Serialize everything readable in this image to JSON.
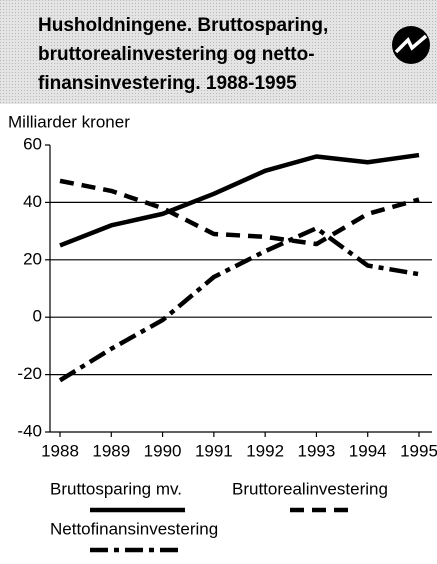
{
  "chart_data": {
    "type": "line",
    "title": [
      "Husholdningene. Bruttosparing,",
      "bruttorealinvestering og netto-",
      "finansinvestering. 1988-1995"
    ],
    "y_label": "Milliarder kroner",
    "categories": [
      "1988",
      "1989",
      "1990",
      "1991",
      "1992",
      "1993",
      "1994",
      "1995"
    ],
    "series": [
      {
        "name": "Bruttosparing mv.",
        "color": "#000000",
        "values": [
          25,
          32,
          36,
          43,
          51,
          56,
          54,
          56.5
        ]
      },
      {
        "name": "Bruttorealinvestering",
        "color": "#000000",
        "values": [
          47.5,
          44,
          38,
          29,
          28,
          25.5,
          36,
          41
        ]
      },
      {
        "name": "Nettofinansinvestering",
        "color": "#000000",
        "values": [
          -22,
          -11,
          -1,
          14,
          23,
          31,
          18,
          15
        ]
      }
    ],
    "ylim": [
      -40,
      60
    ],
    "yticks": [
      -40,
      -20,
      0,
      20,
      40,
      60
    ],
    "grid": true
  }
}
